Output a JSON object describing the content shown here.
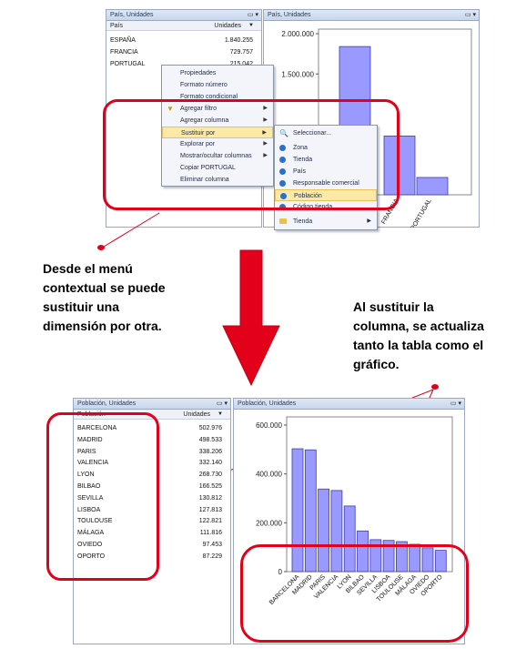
{
  "top": {
    "table_panel": {
      "title": "País, Unidades",
      "col1": "País",
      "col2": "Unidades",
      "rows": [
        {
          "c1": "ESPAÑA",
          "c2": "1.840.255"
        },
        {
          "c1": "FRANCIA",
          "c2": "729.757"
        },
        {
          "c1": "PORTUGAL",
          "c2": "215.042"
        }
      ]
    },
    "chart_panel": {
      "title": "País, Unidades"
    },
    "context_menu": [
      {
        "label": "Propiedades"
      },
      {
        "label": "Formato número"
      },
      {
        "label": "Formato condicional"
      },
      {
        "label": "Agregar filtro",
        "arrow": "▶",
        "icon": "▼"
      },
      {
        "label": "Agregar columna",
        "arrow": "▶"
      },
      {
        "label": "Sustituir por",
        "arrow": "▶"
      },
      {
        "label": "Explorar por",
        "arrow": "▶"
      },
      {
        "label": "Mostrar/ocultar columnas",
        "arrow": "▶"
      },
      {
        "label": "Copiar PORTUGAL"
      },
      {
        "label": "Eliminar columna"
      }
    ],
    "submenu": [
      {
        "label": "Seleccionar..."
      },
      {
        "label": "Zona"
      },
      {
        "label": "Tienda"
      },
      {
        "label": "País"
      },
      {
        "label": "Responsable comercial"
      },
      {
        "label": "Población"
      },
      {
        "label": "Código tienda"
      },
      {
        "label": "Tienda",
        "arrow": "▶"
      }
    ]
  },
  "captions": {
    "left": [
      "Desde el menú",
      "contextual se puede",
      "sustituir una",
      "dimensión por otra."
    ],
    "right": [
      "Al sustituir la",
      "columna, se actualiza",
      "tanto la tabla como el",
      "gráfico."
    ]
  },
  "bottom": {
    "table_panel": {
      "title": "Población, Unidades",
      "col1": "Población",
      "col2": "Unidades",
      "rows": [
        {
          "c1": "BARCELONA",
          "c2": "502.976"
        },
        {
          "c1": "MADRID",
          "c2": "498.533"
        },
        {
          "c1": "PARIS",
          "c2": "338.206"
        },
        {
          "c1": "VALENCIA",
          "c2": "332.140"
        },
        {
          "c1": "LYON",
          "c2": "268.730"
        },
        {
          "c1": "BILBAO",
          "c2": "166.525"
        },
        {
          "c1": "SEVILLA",
          "c2": "130.812"
        },
        {
          "c1": "LISBOA",
          "c2": "127.813"
        },
        {
          "c1": "TOULOUSE",
          "c2": "122.821"
        },
        {
          "c1": "MÁLAGA",
          "c2": "111.816"
        },
        {
          "c1": "OVIEDO",
          "c2": "97.453"
        },
        {
          "c1": "OPORTO",
          "c2": "87.229"
        }
      ]
    },
    "chart_panel": {
      "title": "Población, Unidades"
    }
  },
  "chart_data": [
    {
      "type": "bar",
      "categories": [
        "ESPAÑA",
        "FRANCIA",
        "PORTUGAL"
      ],
      "values": [
        1840255,
        729757,
        215042
      ],
      "ytick_labels": [
        "2.000.000",
        "1.500.000"
      ],
      "ylim": [
        0,
        2000000
      ],
      "bar_color": "#9999ff"
    },
    {
      "type": "bar",
      "categories": [
        "BARCELONA",
        "MADRID",
        "PARIS",
        "VALENCIA",
        "LYON",
        "BILBAO",
        "SEVILLA",
        "LISBOA",
        "TOULOUSE",
        "MÁLAGA",
        "OVIEDO",
        "OPORTO"
      ],
      "values": [
        502976,
        498533,
        338206,
        332140,
        268730,
        166525,
        130812,
        127813,
        122821,
        111816,
        97453,
        87229
      ],
      "ytick_labels": [
        "600.000",
        "400.000",
        "200.000",
        "0"
      ],
      "yticks": [
        600000,
        400000,
        200000,
        0
      ],
      "ylim": [
        0,
        600000
      ],
      "bar_color": "#9999ff"
    }
  ],
  "colors": {
    "accent_red": "#e2001a",
    "bar": "#9999ff"
  }
}
